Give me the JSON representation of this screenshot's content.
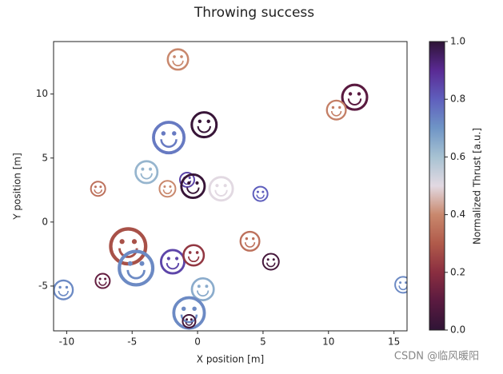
{
  "chart_data": {
    "type": "scatter",
    "title": "Throwing success",
    "xlabel": "X position [m]",
    "ylabel": "Y position [m]",
    "x": [
      -1.5,
      12.0,
      10.6,
      0.5,
      -2.2,
      -3.9,
      -7.6,
      -2.3,
      -0.8,
      -0.35,
      1.8,
      4.8,
      4.0,
      -5.3,
      -4.7,
      -1.9,
      -0.3,
      5.6,
      -7.25,
      -10.25,
      0.4,
      -0.65,
      -0.65,
      15.7
    ],
    "y": [
      12.7,
      9.75,
      8.75,
      7.6,
      6.6,
      3.9,
      2.6,
      2.6,
      3.3,
      2.8,
      2.6,
      2.2,
      -1.5,
      -1.9,
      -3.6,
      -3.1,
      -2.6,
      -3.1,
      -4.6,
      -5.3,
      -5.25,
      -7.1,
      -7.75,
      -4.9
    ],
    "sizes": [
      14,
      17,
      13,
      17,
      21,
      15,
      10,
      11,
      10,
      16,
      16,
      10,
      13,
      24,
      23,
      16,
      14,
      11,
      10,
      13,
      15,
      21,
      9,
      11
    ],
    "thrust": [
      0.4,
      0.1,
      0.38,
      0.02,
      0.75,
      0.63,
      0.35,
      0.4,
      0.85,
      0.02,
      0.5,
      0.8,
      0.35,
      0.28,
      0.72,
      0.85,
      0.22,
      0.05,
      0.12,
      0.72,
      0.65,
      0.72,
      0.05,
      0.72
    ],
    "xlim": [
      -11,
      16
    ],
    "ylim": [
      -8.5,
      14.1
    ],
    "xticks": [
      -10,
      -5,
      0,
      5,
      10,
      15
    ],
    "yticks": [
      -5,
      0,
      5,
      10
    ],
    "colormap": [
      "#2f1436",
      "#5a1a40",
      "#8a2e40",
      "#b05a4a",
      "#c9886d",
      "#e2d9e2",
      "#a7c2d2",
      "#6f95c6",
      "#5f5fbd",
      "#5a2a94",
      "#2f1436"
    ],
    "colorbar": {
      "label": "Normalized Thrust [a.u.]",
      "lim": [
        0,
        1
      ],
      "ticks": [
        {
          "value": 0,
          "label": "0.0"
        },
        {
          "value": 0.2,
          "label": "0.2"
        },
        {
          "value": 0.4,
          "label": "0.4"
        },
        {
          "value": 0.6,
          "label": "0.6"
        },
        {
          "value": 0.8,
          "label": "0.8"
        },
        {
          "value": 1,
          "label": "1.0"
        }
      ]
    },
    "watermark": "CSDN @临风暖阳"
  }
}
